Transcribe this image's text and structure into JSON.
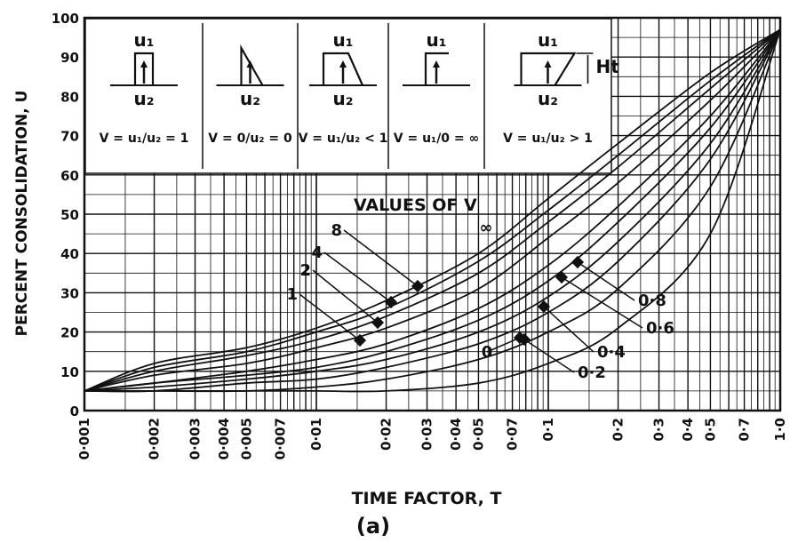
{
  "chart_data": {
    "type": "line",
    "xlabel": "TIME FACTOR, T",
    "ylabel": "PERCENT CONSOLIDATION, U",
    "caption": "(a)",
    "x_scale": "log",
    "xlim": [
      0.001,
      1.0
    ],
    "ylim": [
      0,
      100
    ],
    "grid": true,
    "x_ticks": [
      {
        "v": 0.001,
        "label": "0·001"
      },
      {
        "v": 0.002,
        "label": "0·002"
      },
      {
        "v": 0.003,
        "label": "0·003"
      },
      {
        "v": 0.004,
        "label": "0·004"
      },
      {
        "v": 0.005,
        "label": "0·005"
      },
      {
        "v": 0.007,
        "label": "0·007"
      },
      {
        "v": 0.01,
        "label": "0·01"
      },
      {
        "v": 0.02,
        "label": "0·02"
      },
      {
        "v": 0.03,
        "label": "0·03"
      },
      {
        "v": 0.04,
        "label": "0·04"
      },
      {
        "v": 0.05,
        "label": "0·05"
      },
      {
        "v": 0.07,
        "label": "0·07"
      },
      {
        "v": 0.1,
        "label": "0·1"
      },
      {
        "v": 0.2,
        "label": "0·2"
      },
      {
        "v": 0.3,
        "label": "0·3"
      },
      {
        "v": 0.4,
        "label": "0·4"
      },
      {
        "v": 0.5,
        "label": "0·5"
      },
      {
        "v": 0.7,
        "label": "0·7"
      },
      {
        "v": 1.0,
        "label": "1·0"
      }
    ],
    "y_ticks": [
      "0",
      "10",
      "20",
      "30",
      "40",
      "50",
      "60",
      "70",
      "80",
      "90",
      "100"
    ],
    "legend_title": "VALUES OF V",
    "x": [
      0.001,
      0.002,
      0.005,
      0.01,
      0.02,
      0.05,
      0.1,
      0.2,
      0.5,
      1.0
    ],
    "series": [
      {
        "name": "∞",
        "values": [
          5,
          12,
          16,
          21,
          28,
          40,
          54,
          68,
          86,
          97
        ]
      },
      {
        "name": "8",
        "values": [
          5,
          11,
          15,
          20,
          26,
          38,
          51,
          65,
          84,
          97
        ]
      },
      {
        "name": "4",
        "values": [
          5,
          10,
          14,
          18,
          24,
          35,
          48,
          62,
          82,
          97
        ]
      },
      {
        "name": "2",
        "values": [
          5,
          9,
          12,
          16,
          21,
          31,
          44,
          58,
          79,
          97
        ]
      },
      {
        "name": "1",
        "values": [
          5,
          7,
          10,
          13,
          17,
          26,
          37,
          52,
          75,
          97
        ]
      },
      {
        "name": "0·8",
        "values": [
          5,
          7,
          9,
          11,
          15,
          23,
          33,
          48,
          72,
          97
        ]
      },
      {
        "name": "0·6",
        "values": [
          5,
          6,
          8,
          10,
          13,
          20,
          29,
          43,
          68,
          97
        ]
      },
      {
        "name": "0·4",
        "values": [
          5,
          5,
          7,
          8,
          11,
          17,
          25,
          38,
          64,
          97
        ]
      },
      {
        "name": "0·2",
        "values": [
          5,
          5,
          5,
          6,
          8,
          13,
          20,
          31,
          57,
          97
        ]
      },
      {
        "name": "0",
        "values": [
          5,
          5,
          5,
          5,
          5,
          7,
          12,
          21,
          45,
          97
        ]
      }
    ],
    "inset_panels": [
      {
        "top": "u₁",
        "bottom": "u₂",
        "formula": "V = u₁/u₂ = 1"
      },
      {
        "top": "",
        "bottom": "u₂",
        "formula": "V = 0/u₂ = 0"
      },
      {
        "top": "u₁",
        "bottom": "u₂",
        "formula": "V = u₁/u₂ < 1"
      },
      {
        "top": "u₁",
        "bottom": "",
        "formula": "V = u₁/0 = ∞"
      },
      {
        "top": "u₁",
        "bottom": "u₂",
        "formula": "V = u₁/u₂ > 1",
        "side": "Ht"
      }
    ]
  }
}
